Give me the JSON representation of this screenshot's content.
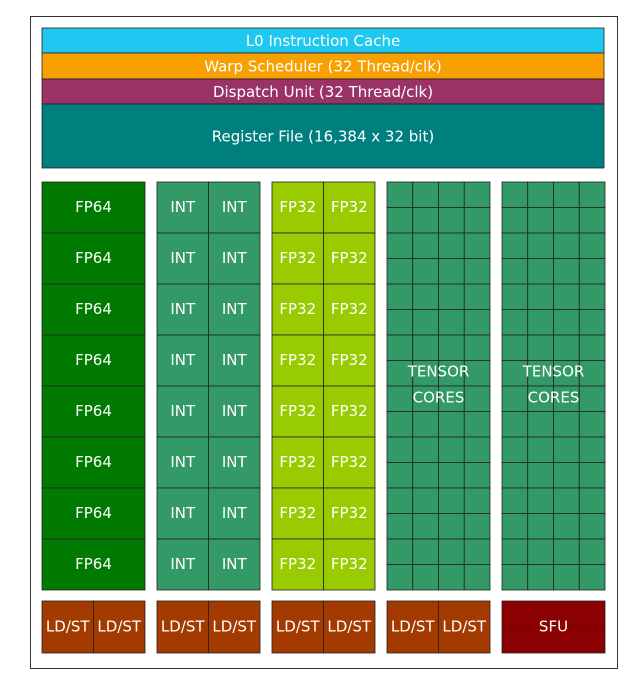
{
  "header_bars": [
    "L0 Instruction Cache",
    "Warp Scheduler (32 Thread/clk)",
    "Dispatch Unit (32 Thread/clk)",
    "Register File (16,384 x 32 bit)"
  ],
  "fp64": [
    "FP64",
    "FP64",
    "FP64",
    "FP64",
    "FP64",
    "FP64",
    "FP64",
    "FP64"
  ],
  "int": [
    [
      "INT",
      "INT"
    ],
    [
      "INT",
      "INT"
    ],
    [
      "INT",
      "INT"
    ],
    [
      "INT",
      "INT"
    ],
    [
      "INT",
      "INT"
    ],
    [
      "INT",
      "INT"
    ],
    [
      "INT",
      "INT"
    ],
    [
      "INT",
      "INT"
    ]
  ],
  "fp32": [
    [
      "FP32",
      "FP32"
    ],
    [
      "FP32",
      "FP32"
    ],
    [
      "FP32",
      "FP32"
    ],
    [
      "FP32",
      "FP32"
    ],
    [
      "FP32",
      "FP32"
    ],
    [
      "FP32",
      "FP32"
    ],
    [
      "FP32",
      "FP32"
    ],
    [
      "FP32",
      "FP32"
    ]
  ],
  "tensor_cores": [
    [
      "TENSOR",
      "CORES"
    ],
    [
      "TENSOR",
      "CORES"
    ]
  ],
  "bottom_units": [
    [
      "LD/ST",
      "LD/ST"
    ],
    [
      "LD/ST",
      "LD/ST"
    ],
    [
      "LD/ST",
      "LD/ST"
    ],
    [
      "LD/ST",
      "LD/ST"
    ],
    [
      "SFU"
    ]
  ]
}
